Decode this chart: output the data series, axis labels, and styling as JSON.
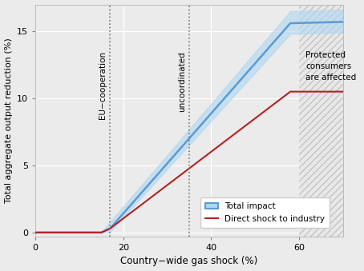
{
  "xlabel": "Country−wide gas shock (%)",
  "ylabel": "Total aggregate output reduction (%)",
  "xlim": [
    0,
    70
  ],
  "ylim": [
    -0.3,
    17
  ],
  "xticks": [
    0,
    20,
    40,
    60
  ],
  "yticks": [
    0,
    5,
    10,
    15
  ],
  "vline1_x": 17,
  "vline2_x": 35,
  "vline1_label": "EU−cooperation",
  "vline2_label": "uncoordinated",
  "hatch_start": 60,
  "blue_line_color": "#5B9BD5",
  "blue_fill_color": "#AED6F1",
  "red_line_color": "#B22222",
  "background_color": "#EBEBEB",
  "grid_color": "#FFFFFF",
  "blue_x": [
    0,
    15,
    17,
    58,
    70
  ],
  "blue_y_main": [
    0,
    0,
    0.3,
    15.6,
    15.7
  ],
  "blue_y_upper": [
    0,
    0,
    0.8,
    16.5,
    16.6
  ],
  "blue_y_lower": [
    0,
    0,
    0.05,
    14.8,
    14.9
  ],
  "red_x": [
    0,
    15,
    17,
    58,
    70
  ],
  "red_y": [
    0,
    0,
    0.3,
    10.5,
    10.5
  ],
  "legend_total": "Total impact",
  "legend_direct": "Direct shock to industry",
  "annot_text": "Protected\nconsumers\nare affected"
}
